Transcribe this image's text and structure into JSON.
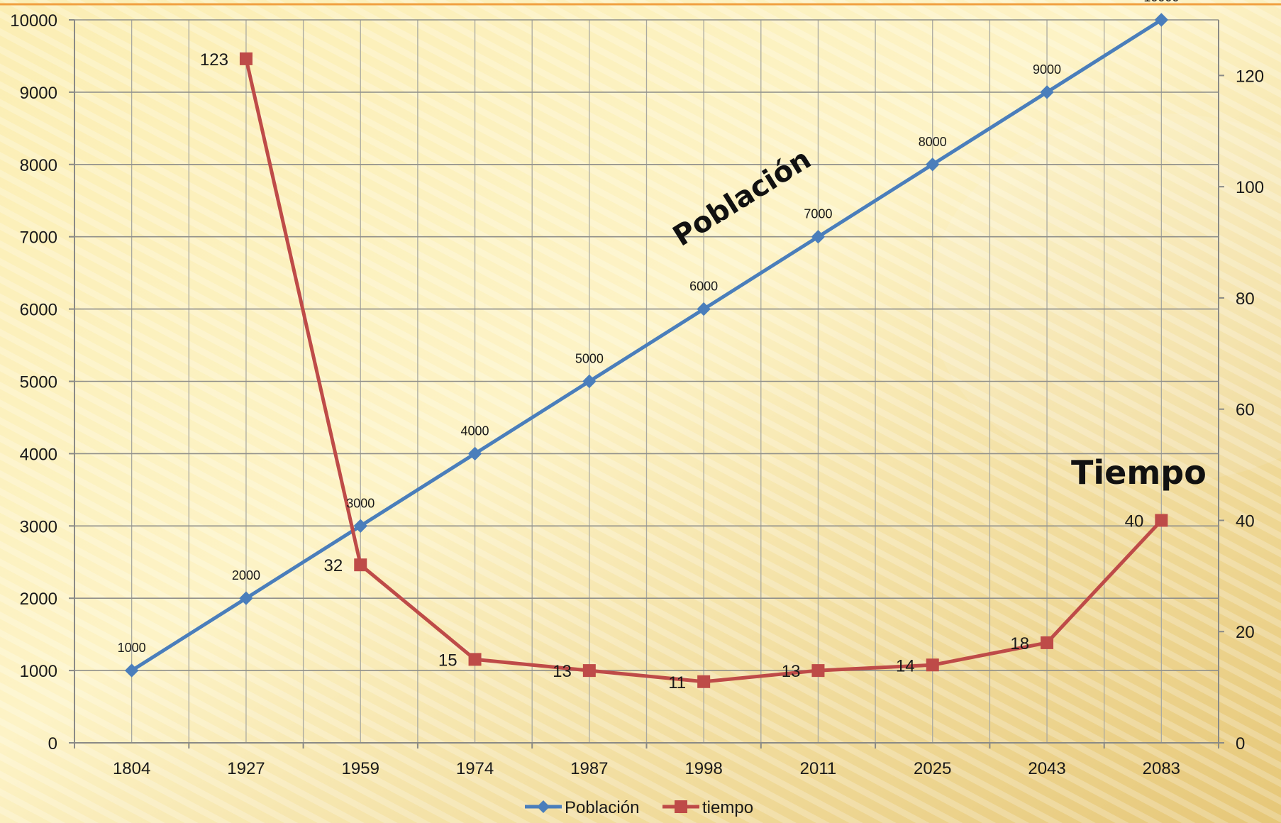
{
  "chart_data": {
    "type": "line",
    "categories": [
      "1804",
      "1927",
      "1959",
      "1974",
      "1987",
      "1998",
      "2011",
      "2025",
      "2043",
      "2083"
    ],
    "series": [
      {
        "name": "Población",
        "axis": "left",
        "color": "#4a7ebb",
        "marker": "diamond",
        "values": [
          1000,
          2000,
          3000,
          4000,
          5000,
          6000,
          7000,
          8000,
          9000,
          10000
        ]
      },
      {
        "name": "tiempo",
        "axis": "right",
        "color": "#be4b48",
        "marker": "square",
        "values": [
          null,
          123,
          32,
          15,
          13,
          11,
          13,
          14,
          18,
          40
        ]
      }
    ],
    "y_left": {
      "min": 0,
      "max": 10000,
      "ticks": [
        0,
        1000,
        2000,
        3000,
        4000,
        5000,
        6000,
        7000,
        8000,
        9000,
        10000
      ]
    },
    "y_right": {
      "min": 0,
      "max": 130,
      "ticks": [
        0,
        20,
        40,
        60,
        80,
        100,
        120
      ]
    },
    "grid": true,
    "legend": "bottom",
    "annotations": {
      "poblacion": "Población",
      "tiempo": "Tiempo"
    }
  }
}
